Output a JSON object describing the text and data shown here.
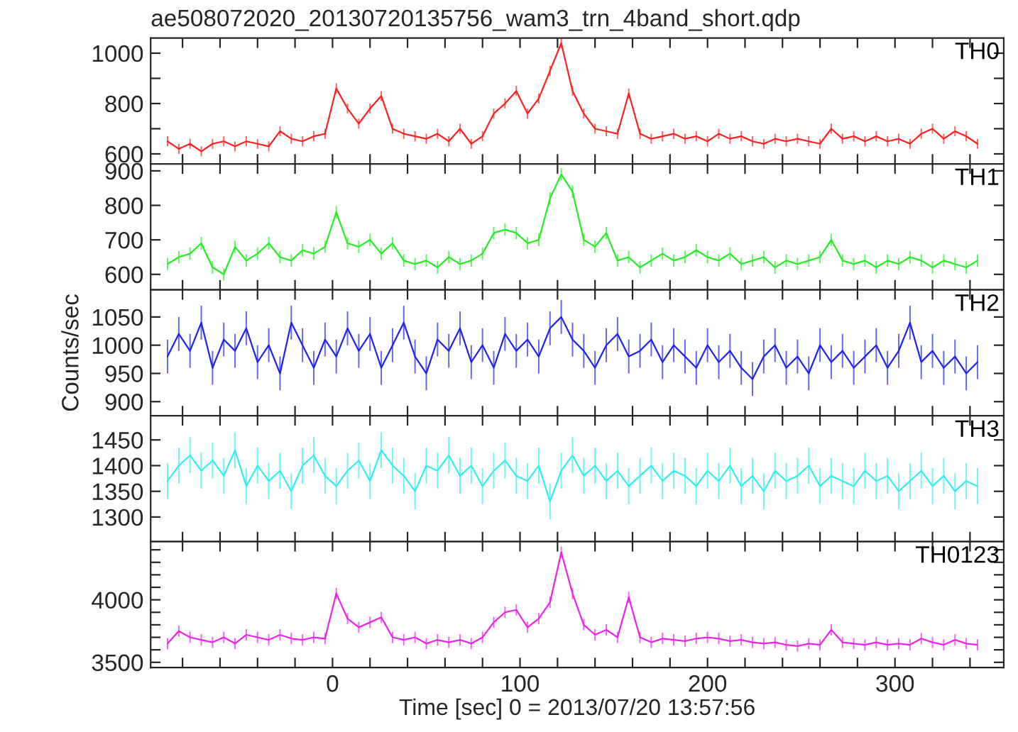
{
  "chart_data": [
    {
      "type": "line",
      "title": "ae508072020_20130720135756_wam3_trn_4band_short.qdp",
      "tick_labels": "y",
      "xlim": [
        -97,
        358
      ],
      "xticks": [
        {
          "value": -80,
          "label": null
        },
        {
          "value": -60,
          "label": null
        },
        {
          "value": -40,
          "label": null
        },
        {
          "value": -20,
          "label": null
        },
        0,
        {
          "value": 20,
          "label": null
        },
        {
          "value": 40,
          "label": null
        },
        {
          "value": 60,
          "label": null
        },
        {
          "value": 80,
          "label": null
        },
        100,
        {
          "value": 120,
          "label": null
        },
        {
          "value": 140,
          "label": null
        },
        {
          "value": 160,
          "label": null
        },
        {
          "value": 180,
          "label": null
        },
        200,
        {
          "value": 220,
          "label": null
        },
        {
          "value": 240,
          "label": null
        },
        {
          "value": 260,
          "label": null
        },
        {
          "value": 280,
          "label": null
        },
        300,
        {
          "value": 320,
          "label": null
        },
        {
          "value": 340,
          "label": null
        }
      ],
      "ylim": [
        560,
        1060
      ],
      "yticks": [
        600,
        {
          "value": 700,
          "label": null
        },
        800,
        {
          "value": 900,
          "label": null
        },
        1000
      ],
      "x": [
        -88,
        -82,
        -76,
        -70,
        -64,
        -58,
        -52,
        -46,
        -40,
        -34,
        -28,
        -22,
        -16,
        -10,
        -4,
        2,
        8,
        14,
        20,
        26,
        32,
        38,
        44,
        50,
        56,
        62,
        68,
        74,
        80,
        86,
        92,
        98,
        104,
        110,
        116,
        122,
        128,
        134,
        140,
        146,
        152,
        158,
        164,
        170,
        176,
        182,
        188,
        194,
        200,
        206,
        212,
        218,
        224,
        230,
        236,
        242,
        248,
        254,
        260,
        266,
        272,
        278,
        284,
        290,
        296,
        302,
        308,
        314,
        320,
        326,
        332,
        338,
        344
      ],
      "series": [
        {
          "name": "TH0",
          "color": "#ff2020",
          "values": [
            650,
            620,
            640,
            610,
            640,
            650,
            630,
            650,
            640,
            630,
            690,
            660,
            650,
            670,
            680,
            860,
            780,
            720,
            780,
            830,
            700,
            680,
            670,
            660,
            680,
            650,
            700,
            640,
            670,
            760,
            800,
            850,
            760,
            820,
            930,
            1040,
            850,
            760,
            700,
            690,
            680,
            840,
            680,
            660,
            670,
            680,
            660,
            670,
            650,
            680,
            660,
            670,
            650,
            640,
            660,
            650,
            660,
            650,
            640,
            700,
            660,
            670,
            650,
            670,
            650,
            660,
            640,
            680,
            700,
            660,
            690,
            670,
            640
          ],
          "errors": [
            20,
            20,
            20,
            20,
            20,
            20,
            20,
            20,
            20,
            20,
            20,
            20,
            20,
            20,
            20,
            20,
            20,
            20,
            20,
            20,
            20,
            20,
            20,
            20,
            20,
            20,
            20,
            20,
            20,
            20,
            20,
            20,
            20,
            20,
            20,
            20,
            20,
            20,
            20,
            20,
            20,
            20,
            20,
            20,
            20,
            20,
            20,
            20,
            20,
            20,
            20,
            20,
            20,
            20,
            20,
            20,
            20,
            20,
            20,
            20,
            20,
            20,
            20,
            20,
            20,
            20,
            20,
            20,
            20,
            20,
            20,
            20,
            20
          ]
        }
      ]
    },
    {
      "type": "line",
      "tick_labels": "y",
      "xlim": [
        -97,
        358
      ],
      "xticks": [
        {
          "value": -80,
          "label": null
        },
        {
          "value": -60,
          "label": null
        },
        {
          "value": -40,
          "label": null
        },
        {
          "value": -20,
          "label": null
        },
        0,
        {
          "value": 20,
          "label": null
        },
        {
          "value": 40,
          "label": null
        },
        {
          "value": 60,
          "label": null
        },
        {
          "value": 80,
          "label": null
        },
        100,
        {
          "value": 120,
          "label": null
        },
        {
          "value": 140,
          "label": null
        },
        {
          "value": 160,
          "label": null
        },
        {
          "value": 180,
          "label": null
        },
        200,
        {
          "value": 220,
          "label": null
        },
        {
          "value": 240,
          "label": null
        },
        {
          "value": 260,
          "label": null
        },
        {
          "value": 280,
          "label": null
        },
        300,
        {
          "value": 320,
          "label": null
        },
        {
          "value": 340,
          "label": null
        }
      ],
      "ylim": [
        555,
        920
      ],
      "yticks": [
        600,
        700,
        800,
        900
      ],
      "x": [
        -88,
        -82,
        -76,
        -70,
        -64,
        -58,
        -52,
        -46,
        -40,
        -34,
        -28,
        -22,
        -16,
        -10,
        -4,
        2,
        8,
        14,
        20,
        26,
        32,
        38,
        44,
        50,
        56,
        62,
        68,
        74,
        80,
        86,
        92,
        98,
        104,
        110,
        116,
        122,
        128,
        134,
        140,
        146,
        152,
        158,
        164,
        170,
        176,
        182,
        188,
        194,
        200,
        206,
        212,
        218,
        224,
        230,
        236,
        242,
        248,
        254,
        260,
        266,
        272,
        278,
        284,
        290,
        296,
        302,
        308,
        314,
        320,
        326,
        332,
        338,
        344
      ],
      "series": [
        {
          "name": "TH1",
          "color": "#22ee22",
          "values": [
            630,
            650,
            660,
            690,
            620,
            600,
            680,
            640,
            660,
            690,
            650,
            640,
            670,
            660,
            680,
            780,
            690,
            680,
            700,
            660,
            690,
            640,
            630,
            640,
            620,
            650,
            630,
            640,
            660,
            720,
            730,
            720,
            690,
            700,
            820,
            890,
            840,
            700,
            680,
            720,
            640,
            650,
            620,
            640,
            660,
            640,
            650,
            670,
            650,
            640,
            660,
            630,
            640,
            650,
            620,
            640,
            630,
            640,
            650,
            700,
            640,
            630,
            640,
            620,
            640,
            630,
            650,
            640,
            620,
            640,
            630,
            620,
            640
          ],
          "errors": [
            18,
            18,
            18,
            18,
            18,
            18,
            18,
            18,
            18,
            18,
            18,
            18,
            18,
            18,
            18,
            18,
            18,
            18,
            18,
            18,
            18,
            18,
            18,
            18,
            18,
            18,
            18,
            18,
            18,
            18,
            18,
            18,
            18,
            18,
            18,
            18,
            18,
            18,
            18,
            18,
            18,
            18,
            18,
            18,
            18,
            18,
            18,
            18,
            18,
            18,
            18,
            18,
            18,
            18,
            18,
            18,
            18,
            18,
            18,
            18,
            18,
            18,
            18,
            18,
            18,
            18,
            18,
            18,
            18,
            18,
            18,
            18,
            18
          ]
        }
      ]
    },
    {
      "type": "line",
      "tick_labels": "y",
      "ylabel": "Counts/sec",
      "xlim": [
        -97,
        358
      ],
      "xticks": [
        {
          "value": -80,
          "label": null
        },
        {
          "value": -60,
          "label": null
        },
        {
          "value": -40,
          "label": null
        },
        {
          "value": -20,
          "label": null
        },
        0,
        {
          "value": 20,
          "label": null
        },
        {
          "value": 40,
          "label": null
        },
        {
          "value": 60,
          "label": null
        },
        {
          "value": 80,
          "label": null
        },
        100,
        {
          "value": 120,
          "label": null
        },
        {
          "value": 140,
          "label": null
        },
        {
          "value": 160,
          "label": null
        },
        {
          "value": 180,
          "label": null
        },
        200,
        {
          "value": 220,
          "label": null
        },
        {
          "value": 240,
          "label": null
        },
        {
          "value": 260,
          "label": null
        },
        {
          "value": 280,
          "label": null
        },
        300,
        {
          "value": 320,
          "label": null
        },
        {
          "value": 340,
          "label": null
        }
      ],
      "ylim": [
        875,
        1098
      ],
      "yticks": [
        900,
        950,
        1000,
        1050
      ],
      "x": [
        -88,
        -82,
        -76,
        -70,
        -64,
        -58,
        -52,
        -46,
        -40,
        -34,
        -28,
        -22,
        -16,
        -10,
        -4,
        2,
        8,
        14,
        20,
        26,
        32,
        38,
        44,
        50,
        56,
        62,
        68,
        74,
        80,
        86,
        92,
        98,
        104,
        110,
        116,
        122,
        128,
        134,
        140,
        146,
        152,
        158,
        164,
        170,
        176,
        182,
        188,
        194,
        200,
        206,
        212,
        218,
        224,
        230,
        236,
        242,
        248,
        254,
        260,
        266,
        272,
        278,
        284,
        290,
        296,
        302,
        308,
        314,
        320,
        326,
        332,
        338,
        344
      ],
      "series": [
        {
          "name": "TH2",
          "color": "#2222ee",
          "values": [
            980,
            1020,
            990,
            1040,
            960,
            1010,
            990,
            1030,
            970,
            1000,
            950,
            1040,
            1000,
            960,
            1010,
            980,
            1030,
            990,
            1020,
            960,
            1000,
            1040,
            980,
            950,
            1010,
            990,
            1030,
            970,
            1000,
            960,
            1020,
            990,
            1010,
            980,
            1030,
            1050,
            1010,
            990,
            960,
            1000,
            1020,
            980,
            990,
            1010,
            970,
            1000,
            980,
            960,
            1000,
            970,
            990,
            960,
            940,
            980,
            1000,
            960,
            980,
            950,
            1000,
            970,
            990,
            960,
            980,
            1000,
            960,
            990,
            1040,
            970,
            990,
            960,
            980,
            950,
            970
          ],
          "errors": [
            30,
            30,
            30,
            30,
            30,
            30,
            30,
            30,
            30,
            30,
            30,
            30,
            30,
            30,
            30,
            30,
            30,
            30,
            30,
            30,
            30,
            30,
            30,
            30,
            30,
            30,
            30,
            30,
            30,
            30,
            30,
            30,
            30,
            30,
            30,
            30,
            30,
            30,
            30,
            30,
            30,
            30,
            30,
            30,
            30,
            30,
            30,
            30,
            30,
            30,
            30,
            30,
            30,
            30,
            30,
            30,
            30,
            30,
            30,
            30,
            30,
            30,
            30,
            30,
            30,
            30,
            30,
            30,
            30,
            30,
            30,
            30,
            30
          ]
        }
      ]
    },
    {
      "type": "line",
      "tick_labels": "y",
      "xlim": [
        -97,
        358
      ],
      "xticks": [
        {
          "value": -80,
          "label": null
        },
        {
          "value": -60,
          "label": null
        },
        {
          "value": -40,
          "label": null
        },
        {
          "value": -20,
          "label": null
        },
        0,
        {
          "value": 20,
          "label": null
        },
        {
          "value": 40,
          "label": null
        },
        {
          "value": 60,
          "label": null
        },
        {
          "value": 80,
          "label": null
        },
        100,
        {
          "value": 120,
          "label": null
        },
        {
          "value": 140,
          "label": null
        },
        {
          "value": 160,
          "label": null
        },
        {
          "value": 180,
          "label": null
        },
        200,
        {
          "value": 220,
          "label": null
        },
        {
          "value": 240,
          "label": null
        },
        {
          "value": 260,
          "label": null
        },
        {
          "value": 280,
          "label": null
        },
        300,
        {
          "value": 320,
          "label": null
        },
        {
          "value": 340,
          "label": null
        }
      ],
      "ylim": [
        1252,
        1497
      ],
      "yticks": [
        1300,
        1350,
        1400,
        1450
      ],
      "x": [
        -88,
        -82,
        -76,
        -70,
        -64,
        -58,
        -52,
        -46,
        -40,
        -34,
        -28,
        -22,
        -16,
        -10,
        -4,
        2,
        8,
        14,
        20,
        26,
        32,
        38,
        44,
        50,
        56,
        62,
        68,
        74,
        80,
        86,
        92,
        98,
        104,
        110,
        116,
        122,
        128,
        134,
        140,
        146,
        152,
        158,
        164,
        170,
        176,
        182,
        188,
        194,
        200,
        206,
        212,
        218,
        224,
        230,
        236,
        242,
        248,
        254,
        260,
        266,
        272,
        278,
        284,
        290,
        296,
        302,
        308,
        314,
        320,
        326,
        332,
        338,
        344
      ],
      "series": [
        {
          "name": "TH3",
          "color": "#33eeee",
          "values": [
            1370,
            1400,
            1420,
            1390,
            1410,
            1380,
            1430,
            1360,
            1400,
            1370,
            1390,
            1350,
            1400,
            1420,
            1380,
            1360,
            1390,
            1410,
            1370,
            1430,
            1400,
            1380,
            1350,
            1400,
            1390,
            1420,
            1380,
            1400,
            1360,
            1390,
            1410,
            1380,
            1370,
            1400,
            1330,
            1390,
            1420,
            1380,
            1400,
            1370,
            1390,
            1360,
            1380,
            1400,
            1370,
            1390,
            1380,
            1360,
            1390,
            1370,
            1400,
            1360,
            1380,
            1350,
            1390,
            1370,
            1380,
            1400,
            1360,
            1380,
            1370,
            1360,
            1390,
            1370,
            1380,
            1350,
            1370,
            1390,
            1360,
            1380,
            1350,
            1370,
            1360
          ],
          "errors": [
            35,
            35,
            35,
            35,
            35,
            35,
            35,
            35,
            35,
            35,
            35,
            35,
            35,
            35,
            35,
            35,
            35,
            35,
            35,
            35,
            35,
            35,
            35,
            35,
            35,
            35,
            35,
            35,
            35,
            35,
            35,
            35,
            35,
            35,
            35,
            35,
            35,
            35,
            35,
            35,
            35,
            35,
            35,
            35,
            35,
            35,
            35,
            35,
            35,
            35,
            35,
            35,
            35,
            35,
            35,
            35,
            35,
            35,
            35,
            35,
            35,
            35,
            35,
            35,
            35,
            35,
            35,
            35,
            35,
            35,
            35,
            35,
            35
          ]
        }
      ]
    },
    {
      "type": "line",
      "xlabel": "Time [sec] 0 = 2013/07/20 13:57:56",
      "xlim": [
        -97,
        358
      ],
      "xticks": [
        {
          "value": -80,
          "label": null
        },
        {
          "value": -60,
          "label": null
        },
        {
          "value": -40,
          "label": null
        },
        {
          "value": -20,
          "label": null
        },
        0,
        {
          "value": 20,
          "label": null
        },
        {
          "value": 40,
          "label": null
        },
        {
          "value": 60,
          "label": null
        },
        {
          "value": 80,
          "label": null
        },
        100,
        {
          "value": 120,
          "label": null
        },
        {
          "value": 140,
          "label": null
        },
        {
          "value": 160,
          "label": null
        },
        {
          "value": 180,
          "label": null
        },
        200,
        {
          "value": 220,
          "label": null
        },
        {
          "value": 240,
          "label": null
        },
        {
          "value": 260,
          "label": null
        },
        {
          "value": 280,
          "label": null
        },
        300,
        {
          "value": 320,
          "label": null
        },
        {
          "value": 340,
          "label": null
        }
      ],
      "ylim": [
        3458,
        4465
      ],
      "yticks": [
        3500,
        {
          "value": 3600,
          "label": null
        },
        {
          "value": 3700,
          "label": null
        },
        {
          "value": 3800,
          "label": null
        },
        {
          "value": 3900,
          "label": null
        },
        4000,
        {
          "value": 4100,
          "label": null
        },
        {
          "value": 4200,
          "label": null
        },
        {
          "value": 4300,
          "label": null
        },
        {
          "value": 4400,
          "label": null
        }
      ],
      "x": [
        -88,
        -82,
        -76,
        -70,
        -64,
        -58,
        -52,
        -46,
        -40,
        -34,
        -28,
        -22,
        -16,
        -10,
        -4,
        2,
        8,
        14,
        20,
        26,
        32,
        38,
        44,
        50,
        56,
        62,
        68,
        74,
        80,
        86,
        92,
        98,
        104,
        110,
        116,
        122,
        128,
        134,
        140,
        146,
        152,
        158,
        164,
        170,
        176,
        182,
        188,
        194,
        200,
        206,
        212,
        218,
        224,
        230,
        236,
        242,
        248,
        254,
        260,
        266,
        272,
        278,
        284,
        290,
        296,
        302,
        308,
        314,
        320,
        326,
        332,
        338,
        344
      ],
      "series": [
        {
          "name": "TH0123",
          "color": "#ee22ee",
          "values": [
            3650,
            3750,
            3700,
            3680,
            3660,
            3700,
            3650,
            3720,
            3700,
            3680,
            3720,
            3690,
            3680,
            3700,
            3690,
            4050,
            3850,
            3780,
            3820,
            3860,
            3700,
            3680,
            3700,
            3650,
            3680,
            3660,
            3680,
            3650,
            3700,
            3820,
            3900,
            3920,
            3780,
            3850,
            3980,
            4380,
            4050,
            3800,
            3720,
            3760,
            3700,
            4020,
            3700,
            3660,
            3690,
            3680,
            3670,
            3690,
            3700,
            3690,
            3670,
            3680,
            3660,
            3650,
            3660,
            3640,
            3630,
            3650,
            3640,
            3760,
            3660,
            3650,
            3640,
            3660,
            3640,
            3650,
            3640,
            3690,
            3660,
            3640,
            3680,
            3650,
            3640
          ],
          "errors": [
            45,
            45,
            45,
            45,
            45,
            45,
            45,
            45,
            45,
            45,
            45,
            45,
            45,
            45,
            45,
            45,
            45,
            45,
            45,
            45,
            45,
            45,
            45,
            45,
            45,
            45,
            45,
            45,
            45,
            45,
            45,
            45,
            45,
            45,
            45,
            45,
            45,
            45,
            45,
            45,
            45,
            45,
            45,
            45,
            45,
            45,
            45,
            45,
            45,
            45,
            45,
            45,
            45,
            45,
            45,
            45,
            45,
            45,
            45,
            45,
            45,
            45,
            45,
            45,
            45,
            45,
            45,
            45,
            45,
            45,
            45,
            45,
            45
          ]
        }
      ]
    }
  ]
}
